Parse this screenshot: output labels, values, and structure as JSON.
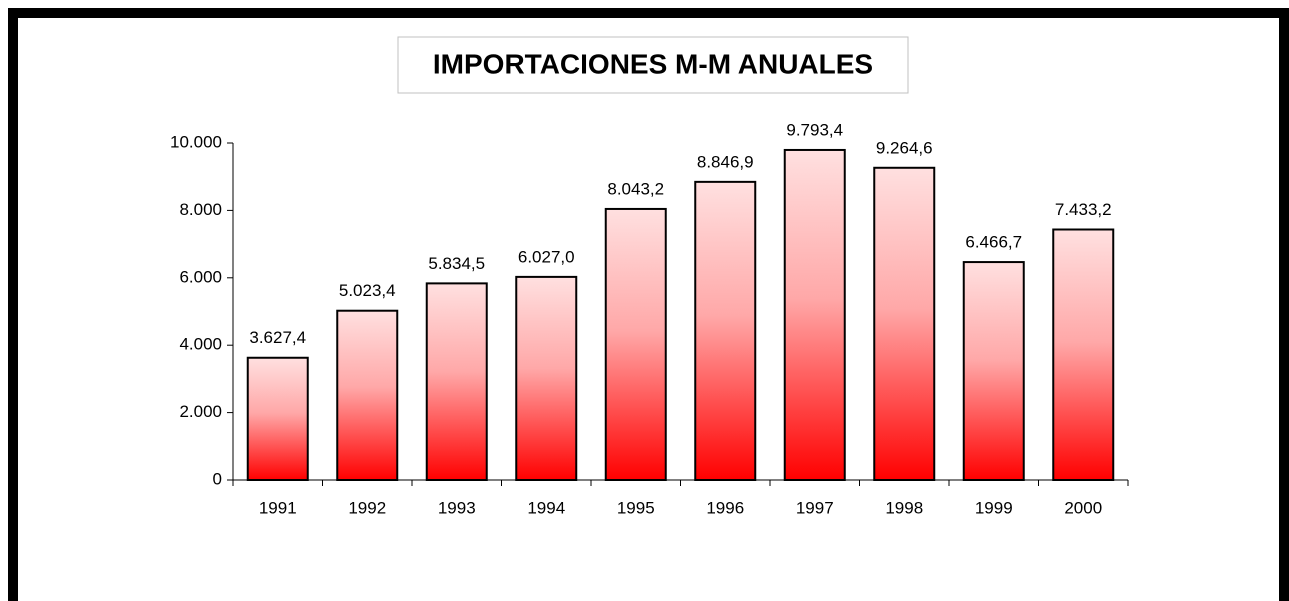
{
  "chart_data": {
    "type": "bar",
    "title": "IMPORTACIONES M-M ANUALES",
    "categories": [
      "1991",
      "1992",
      "1993",
      "1994",
      "1995",
      "1996",
      "1997",
      "1998",
      "1999",
      "2000"
    ],
    "values": [
      3627.4,
      5023.4,
      5834.5,
      6027.0,
      8043.2,
      8846.9,
      9793.4,
      9264.6,
      6466.7,
      7433.2
    ],
    "value_labels": [
      "3.627,4",
      "5.023,4",
      "5.834,5",
      "6.027,0",
      "8.043,2",
      "8.846,9",
      "9.793,4",
      "9.264,6",
      "6.466,7",
      "7.433,2"
    ],
    "color": "#ff0000",
    "ylim": [
      0,
      10000
    ],
    "yticks": [
      0,
      {
        "value": 2000,
        "label": "2.000"
      },
      {
        "value": 4000,
        "label": "4.000"
      },
      {
        "value": 6000,
        "label": "6.000"
      },
      {
        "value": 8000,
        "label": "8.000"
      },
      {
        "value": 10000,
        "label": "10.000"
      }
    ],
    "grid": false
  }
}
